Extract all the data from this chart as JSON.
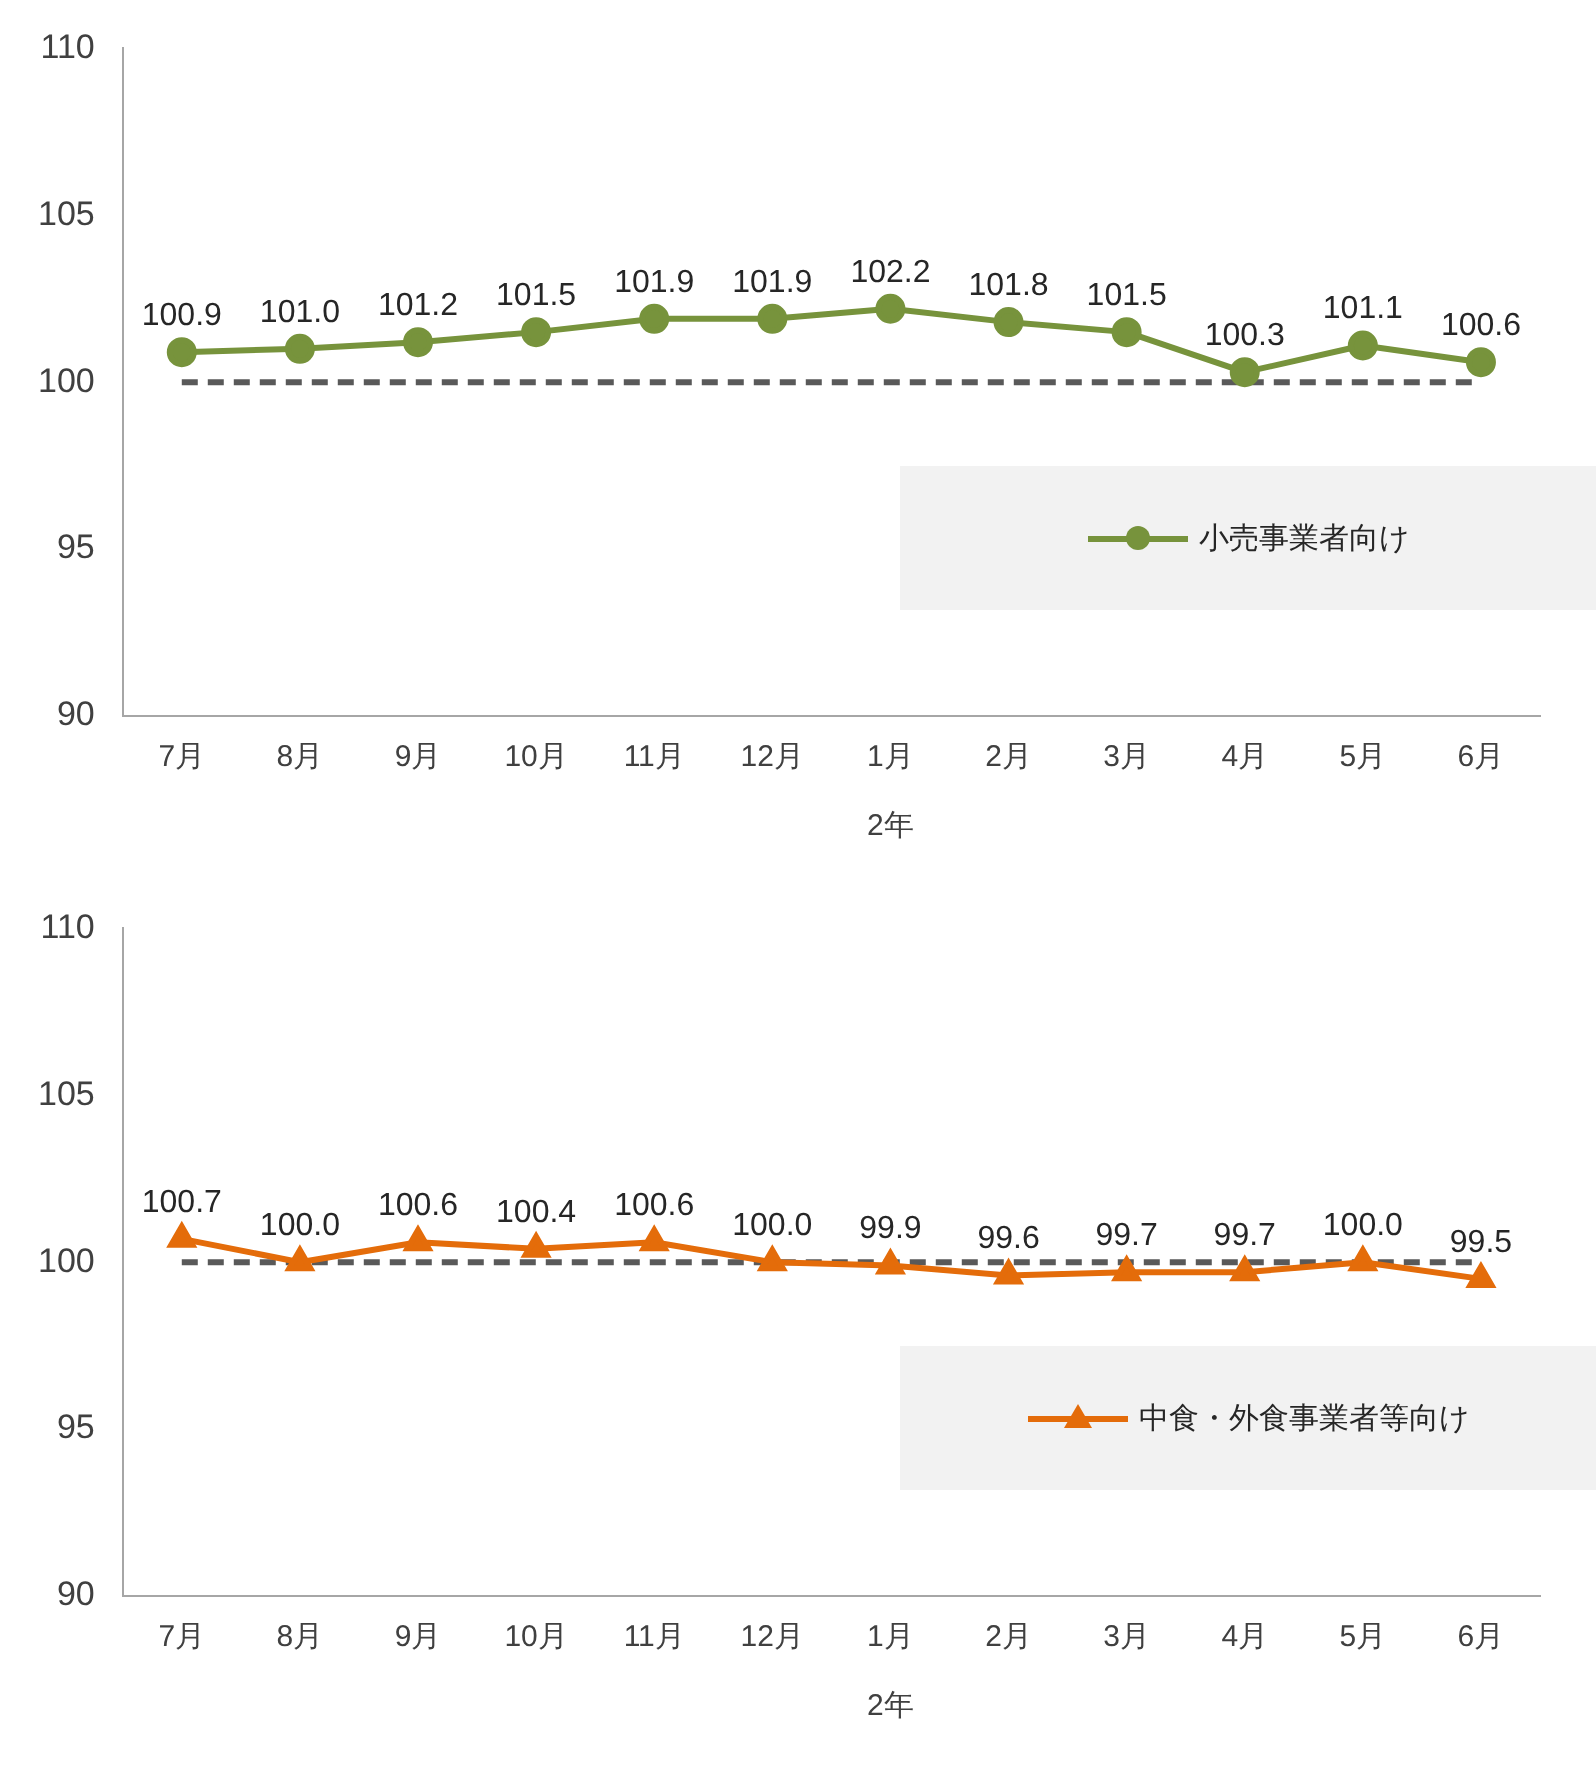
{
  "chart_data": [
    {
      "type": "line",
      "categories": [
        "7月",
        "8月",
        "9月",
        "10月",
        "11月",
        "12月",
        "1月",
        "2月",
        "3月",
        "4月",
        "5月",
        "6月"
      ],
      "series": [
        {
          "name": "小売事業者向け",
          "color": "#77933c",
          "values": [
            100.9,
            101.0,
            101.2,
            101.5,
            101.9,
            101.9,
            102.2,
            101.8,
            101.5,
            100.3,
            101.1,
            100.6
          ],
          "value_labels": [
            "100.9",
            "101.0",
            "101.2",
            "101.5",
            "101.9",
            "101.9",
            "102.2",
            "101.8",
            "101.5",
            "100.3",
            "101.1",
            "100.6"
          ]
        }
      ],
      "ylim": [
        90,
        110
      ],
      "yticks": [
        90,
        95,
        100,
        105,
        110
      ],
      "grid": false,
      "marker": "circle",
      "legend": "bottom right",
      "ref_lines": [
        {
          "axis": "y",
          "value": 100,
          "color": "#595959",
          "line_style": "dashed"
        }
      ],
      "annotations": [
        "2年"
      ]
    },
    {
      "type": "line",
      "categories": [
        "7月",
        "8月",
        "9月",
        "10月",
        "11月",
        "12月",
        "1月",
        "2月",
        "3月",
        "4月",
        "5月",
        "6月"
      ],
      "series": [
        {
          "name": "中食・外食事業者等向け",
          "color": "#e46c0a",
          "values": [
            100.7,
            100.0,
            100.6,
            100.4,
            100.6,
            100.0,
            99.9,
            99.6,
            99.7,
            99.7,
            100.0,
            99.5
          ],
          "value_labels": [
            "100.7",
            "100.0",
            "100.6",
            "100.4",
            "100.6",
            "100.0",
            "99.9",
            "99.6",
            "99.7",
            "99.7",
            "100.0",
            "99.5"
          ]
        }
      ],
      "ylim": [
        90,
        110
      ],
      "yticks": [
        90,
        95,
        100,
        105,
        110
      ],
      "grid": false,
      "marker": "triangle",
      "legend": "bottom right",
      "ref_lines": [
        {
          "axis": "y",
          "value": 100,
          "color": "#595959",
          "line_style": "dashed"
        }
      ],
      "annotations": [
        "2年"
      ]
    }
  ]
}
